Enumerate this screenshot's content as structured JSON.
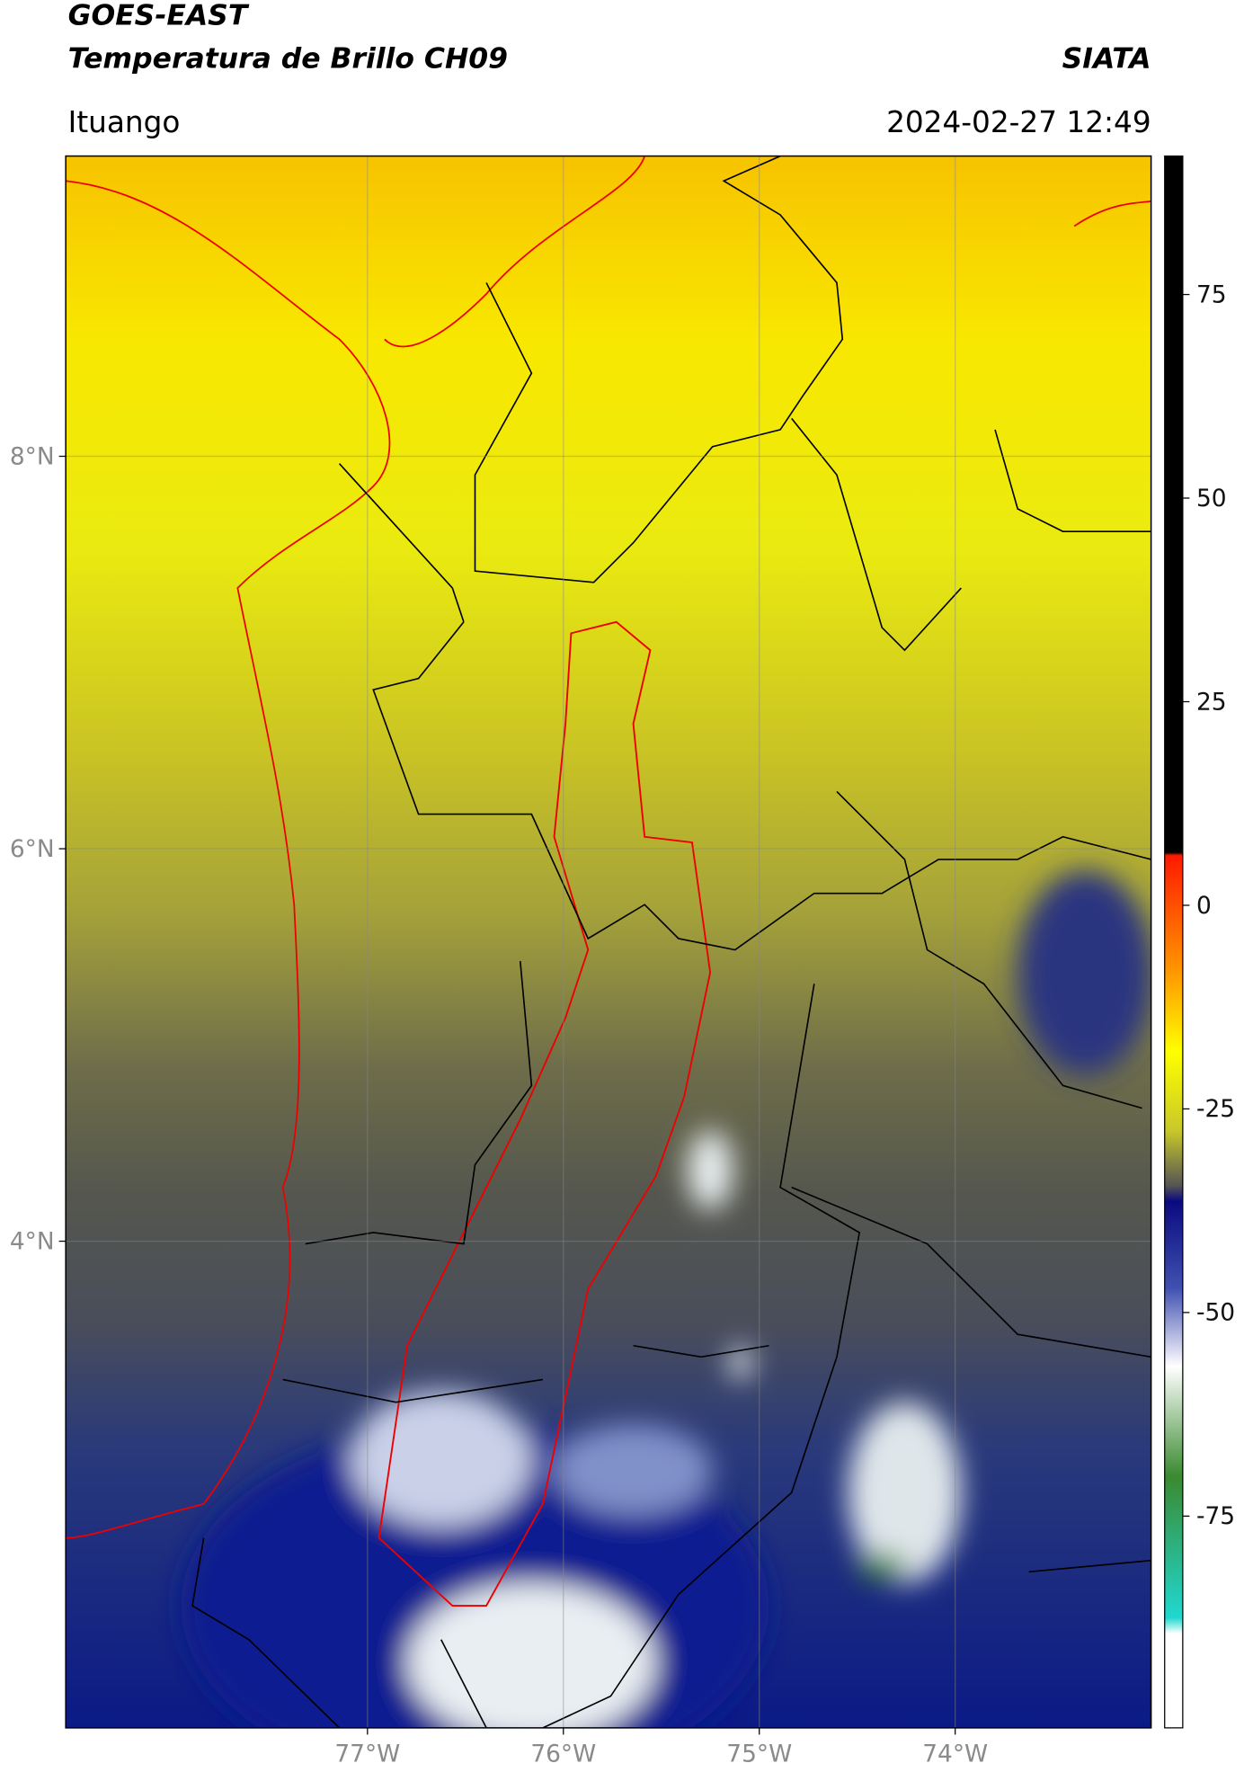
{
  "header": {
    "satellite": "GOES-EAST",
    "product": "Temperatura de Brillo CH09",
    "org": "SIATA",
    "location": "Ituango",
    "datetime": "2024-02-27 12:49"
  },
  "map": {
    "xlim": [
      -78.54,
      -73.0
    ],
    "ylim": [
      1.52,
      9.53
    ],
    "xticks": [
      {
        "value": -77,
        "label": "77°W"
      },
      {
        "value": -76,
        "label": "76°W"
      },
      {
        "value": -75,
        "label": "75°W"
      },
      {
        "value": -74,
        "label": "74°W"
      }
    ],
    "yticks": [
      {
        "value": 8,
        "label": "8°N"
      },
      {
        "value": 6,
        "label": "6°N"
      },
      {
        "value": 4,
        "label": "4°N"
      }
    ],
    "grid": true
  },
  "colorbar": {
    "clim": [
      -101,
      92
    ],
    "ticks": [
      75,
      50,
      25,
      0,
      -25,
      -50,
      -75
    ]
  }
}
